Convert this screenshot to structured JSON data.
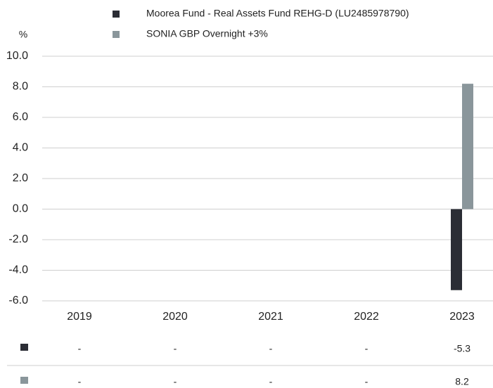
{
  "chart_data": {
    "type": "bar",
    "y_axis_label": "%",
    "categories": [
      "2019",
      "2020",
      "2021",
      "2022",
      "2023"
    ],
    "series": [
      {
        "name": "Moorea Fund - Real Assets Fund REHG-D (LU2485978790)",
        "color": "#2b2d35",
        "values": [
          null,
          null,
          null,
          null,
          -5.3
        ],
        "value_labels": [
          "-",
          "-",
          "-",
          "-",
          "-5.3"
        ]
      },
      {
        "name": "SONIA GBP Overnight +3%",
        "color": "#8a969b",
        "values": [
          null,
          null,
          null,
          null,
          8.2
        ],
        "value_labels": [
          "-",
          "-",
          "-",
          "-",
          "8.2"
        ]
      }
    ],
    "ylim": [
      -6,
      10
    ],
    "yticks": [
      {
        "value": -6,
        "label": "-6.0"
      },
      {
        "value": -4,
        "label": "-4.0"
      },
      {
        "value": -2,
        "label": "-2.0"
      },
      {
        "value": 0,
        "label": "0.0"
      },
      {
        "value": 2,
        "label": "2.0"
      },
      {
        "value": 4,
        "label": "4.0"
      },
      {
        "value": 6,
        "label": "6.0"
      },
      {
        "value": 8,
        "label": "8.0"
      },
      {
        "value": 10,
        "label": "10.0"
      }
    ],
    "grid": true
  }
}
